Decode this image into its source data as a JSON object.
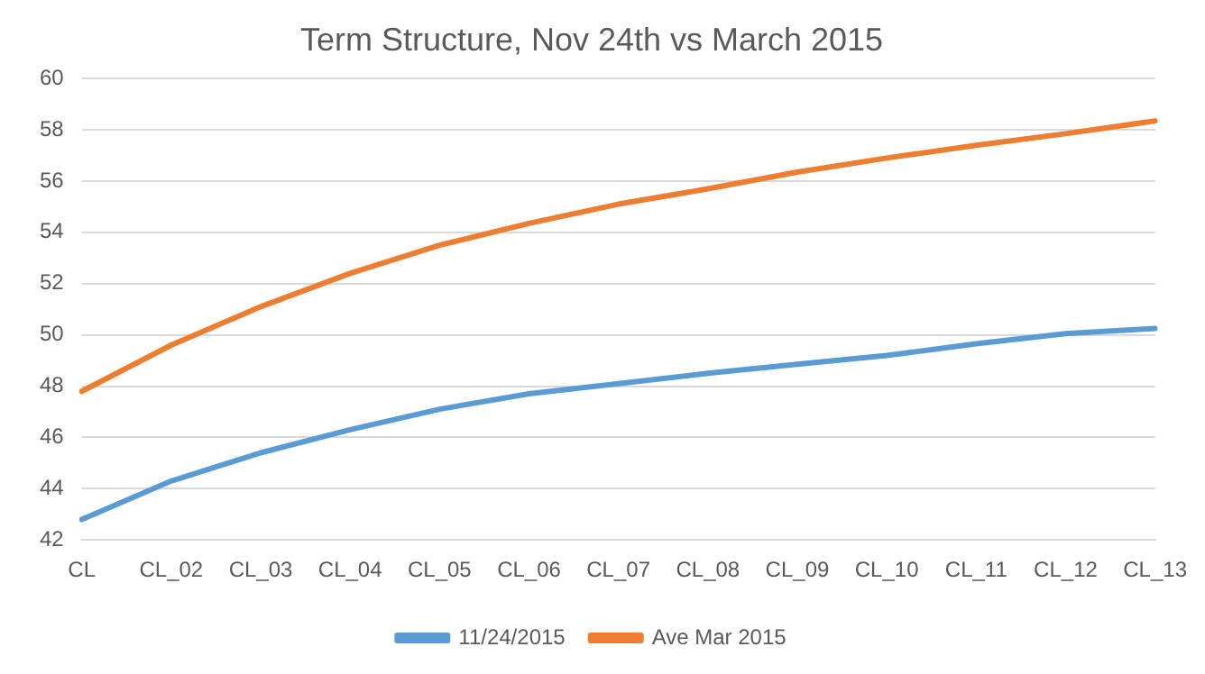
{
  "chart_data": {
    "type": "line",
    "title": "Term Structure, Nov 24th vs March 2015",
    "categories": [
      "CL",
      "CL_02",
      "CL_03",
      "CL_04",
      "CL_05",
      "CL_06",
      "CL_07",
      "CL_08",
      "CL_09",
      "CL_10",
      "CL_11",
      "CL_12",
      "CL_13"
    ],
    "series": [
      {
        "name": "11/24/2015",
        "color": "#5b9bd5",
        "values": [
          42.8,
          44.3,
          45.4,
          46.3,
          47.1,
          47.7,
          48.1,
          48.5,
          48.85,
          49.2,
          49.65,
          50.05,
          50.25
        ]
      },
      {
        "name": "Ave Mar 2015",
        "color": "#ed7d31",
        "values": [
          47.8,
          49.6,
          51.1,
          52.4,
          53.5,
          54.35,
          55.1,
          55.7,
          56.35,
          56.9,
          57.4,
          57.85,
          58.35
        ]
      }
    ],
    "ylim": [
      42,
      60
    ],
    "yticks": [
      42,
      44,
      46,
      48,
      50,
      52,
      54,
      56,
      58,
      60
    ],
    "grid": "y",
    "legend": "bottom",
    "marker": "none",
    "line_style": "solid"
  }
}
